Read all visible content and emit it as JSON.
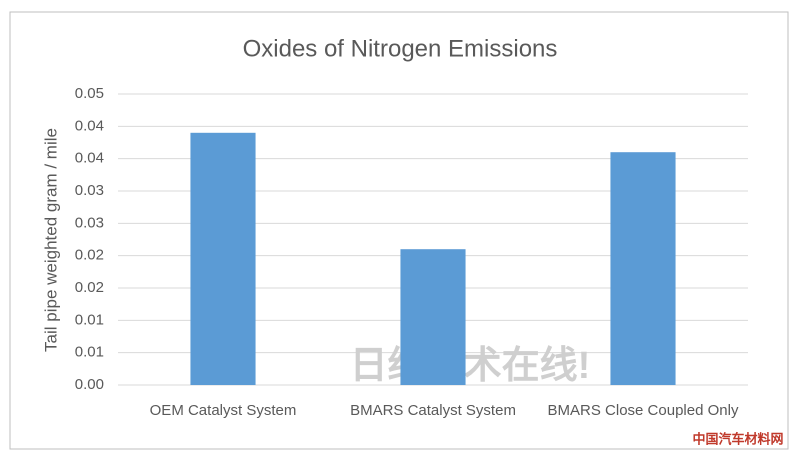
{
  "chart_data": {
    "type": "bar",
    "title": "Oxides of Nitrogen Emissions",
    "y_label": "Tail pipe weighted gram / mile",
    "categories": [
      "OEM Catalyst System",
      "BMARS Catalyst System",
      "BMARS Close Coupled Only"
    ],
    "values": [
      0.039,
      0.021,
      0.036
    ],
    "color": "#5b9bd5",
    "ylim": [
      0,
      0.045
    ],
    "yticks": [
      {
        "value": 0,
        "label": "0.00"
      },
      {
        "value": 0.005,
        "label": "0.01"
      },
      {
        "value": 0.01,
        "label": "0.01"
      },
      {
        "value": 0.015,
        "label": "0.02"
      },
      {
        "value": 0.02,
        "label": "0.02"
      },
      {
        "value": 0.025,
        "label": "0.03"
      },
      {
        "value": 0.03,
        "label": "0.03"
      },
      {
        "value": 0.035,
        "label": "0.04"
      },
      {
        "value": 0.04,
        "label": "0.04"
      },
      {
        "value": 0.045,
        "label": "0.05"
      }
    ],
    "grid": true,
    "watermark": "日经技术在线!",
    "logo": "中国汽车材料网"
  }
}
